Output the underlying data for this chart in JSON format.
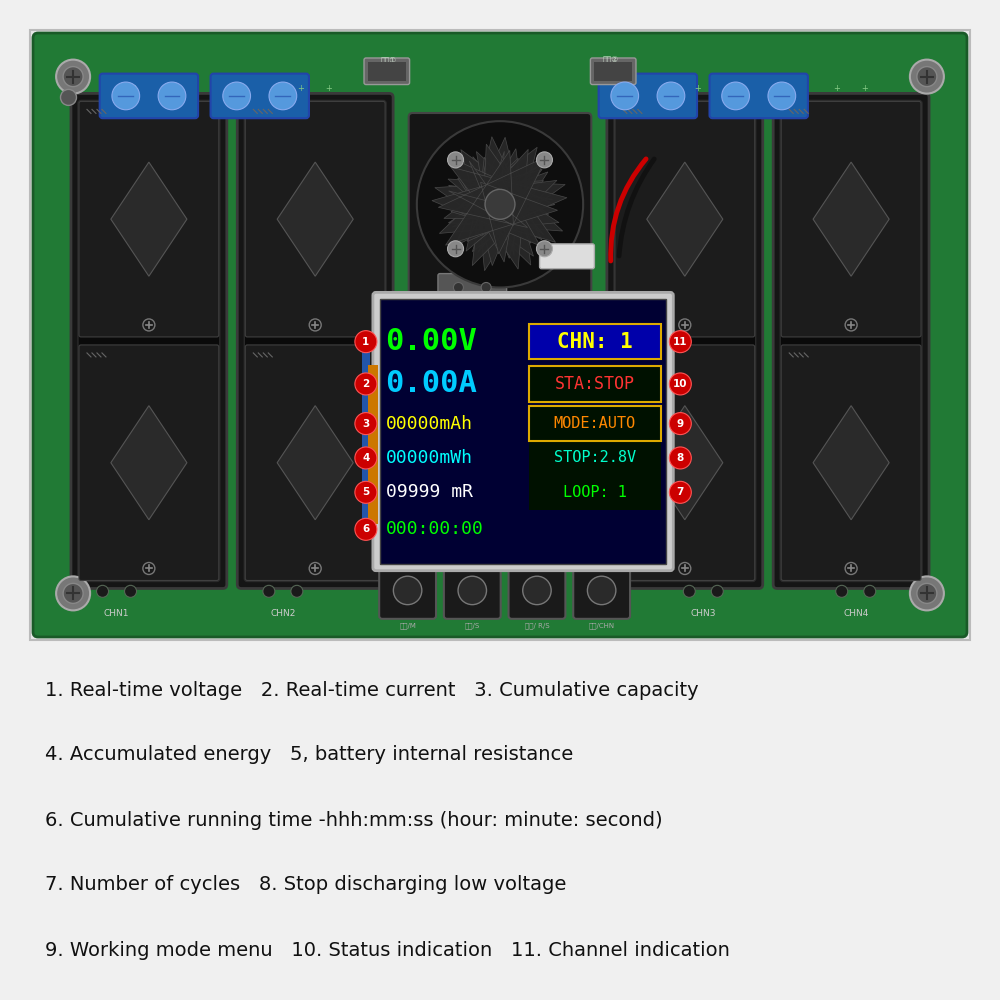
{
  "bg_color": "#f0f0f0",
  "board_color": "#217a35",
  "text_lines": [
    "1. Real-time voltage   2. Real-time current   3. Cumulative capacity",
    "4. Accumulated energy   5, battery internal resistance",
    "6. Cumulative running time -hhh:mm:ss (hour: minute: second)",
    "7. Number of cycles   8. Stop discharging low voltage",
    "9. Working mode menu   10. Status indication   11. Channel indication"
  ],
  "connector_color": "#1a5fa8",
  "battery_color": "#1a1a1a",
  "fan_color": "#111111"
}
